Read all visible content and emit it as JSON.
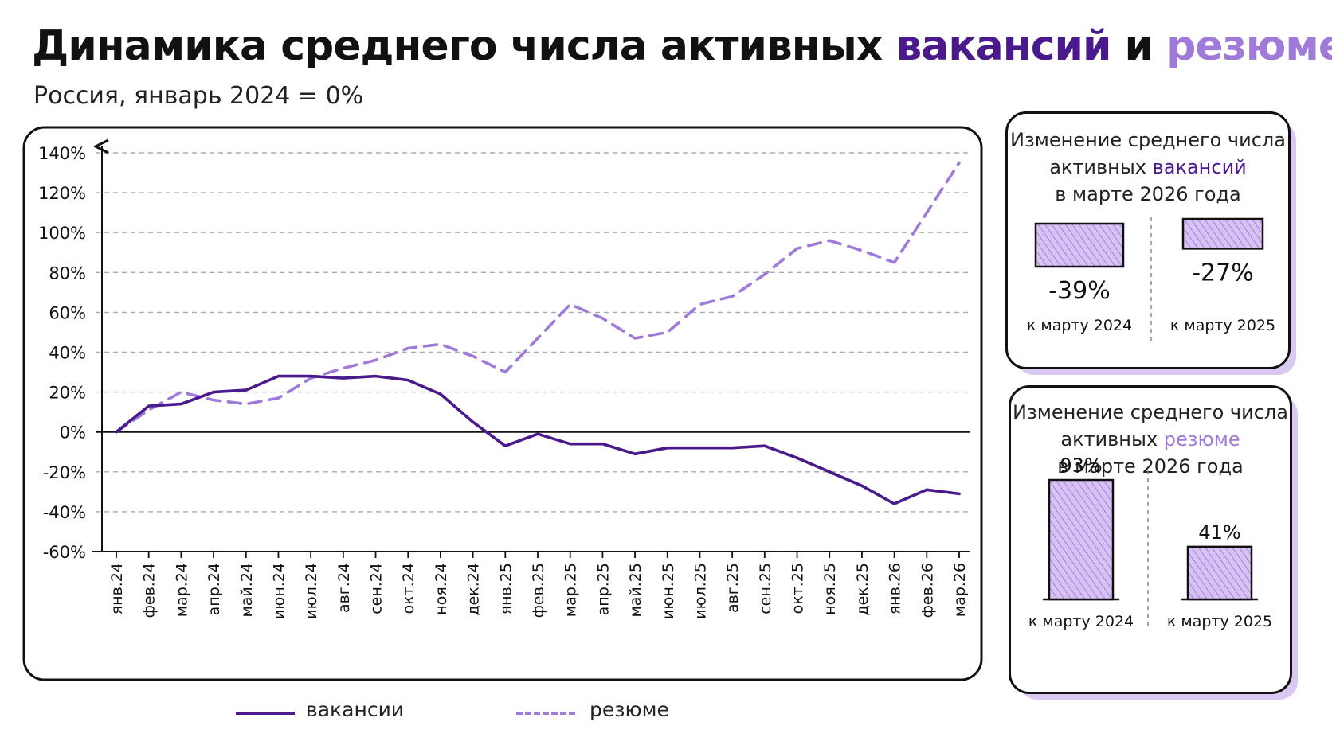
{
  "title": {
    "part1": "Динамика среднего числа активных ",
    "vac_word": "вакансий",
    "part2": " и ",
    "res_word": "резюме"
  },
  "subtitle": "Россия, январь 2024 = 0%",
  "colors": {
    "vacancies": "#4a1a8c",
    "resumes": "#a07ad8",
    "bar_fill": "#d6c3f2",
    "bar_hatch": "#a77fe0"
  },
  "legend": {
    "vacancies": "вакансии",
    "resumes": "резюме"
  },
  "chart_data": {
    "type": "line",
    "ylim": [
      -60,
      140
    ],
    "yticks": [
      140,
      120,
      100,
      80,
      60,
      40,
      20,
      0,
      -20,
      -40,
      -60
    ],
    "ytick_labels": [
      "140%",
      "120%",
      "100%",
      "80%",
      "60%",
      "40%",
      "20%",
      "0%",
      "-20%",
      "-40%",
      "-60%"
    ],
    "grid": true,
    "categories": [
      "янв.24",
      "фев.24",
      "мар.24",
      "апр.24",
      "май.24",
      "июн.24",
      "июл.24",
      "авг.24",
      "сен.24",
      "окт.24",
      "ноя.24",
      "дек.24",
      "янв.25",
      "фев.25",
      "мар.25",
      "апр.25",
      "май.25",
      "июн.25",
      "июл.25",
      "авг.25",
      "сен.25",
      "окт.25",
      "ноя.25",
      "дек.25",
      "янв.26",
      "фев.26",
      "мар.26"
    ],
    "series": [
      {
        "name": "вакансии",
        "style": "solid",
        "values": [
          0,
          13,
          14,
          20,
          21,
          28,
          28,
          27,
          28,
          26,
          19,
          5,
          -7,
          -1,
          -6,
          -6,
          -11,
          -8,
          -8,
          -8,
          -7,
          -13,
          -20,
          -27,
          -36,
          -29,
          -31
        ]
      },
      {
        "name": "резюме",
        "style": "dashed",
        "values": [
          0,
          11,
          20,
          16,
          14,
          17,
          27,
          32,
          36,
          42,
          44,
          38,
          30,
          47,
          64,
          57,
          47,
          50,
          64,
          68,
          79,
          92,
          96,
          91,
          85,
          110,
          135
        ]
      }
    ]
  },
  "panels": [
    {
      "title_line1": "Изменение среднего числа",
      "title_line2_prefix": "активных ",
      "title_line2_accent": "вакансий",
      "title_line3": "в марте 2026 года",
      "bars": [
        {
          "value": -39,
          "label": "-39%",
          "category": "к марту 2024"
        },
        {
          "value": -27,
          "label": "-27%",
          "category": "к марту 2025"
        }
      ]
    },
    {
      "title_line1": "Изменение среднего числа",
      "title_line2_prefix": "активных ",
      "title_line2_accent": "резюме",
      "title_line3": "в марте 2026 года",
      "bars": [
        {
          "value": 93,
          "label": "93%",
          "category": "к марту 2024"
        },
        {
          "value": 41,
          "label": "41%",
          "category": "к марту 2025"
        }
      ]
    }
  ]
}
